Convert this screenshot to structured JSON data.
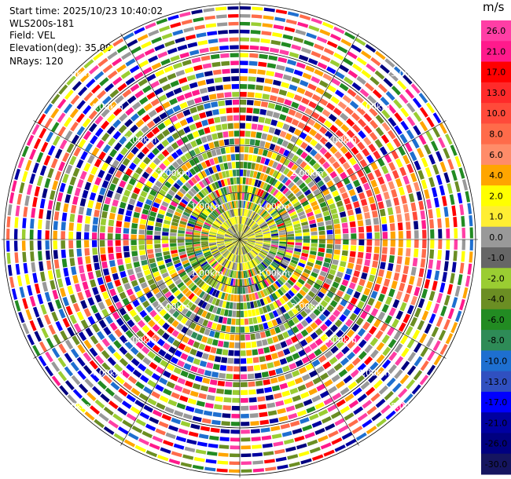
{
  "header": {
    "start_time": "Start time: 2025/10/23 10:40:02",
    "station": "WLS200s-181",
    "field": "Field: VEL",
    "elevation": "Elevation(deg): 35.00",
    "nrays": "NRays: 120"
  },
  "colorbar": {
    "units": "m/s",
    "ticks": [
      "26.0",
      "21.0",
      "17.0",
      "13.0",
      "10.0",
      "8.0",
      "6.0",
      "4.0",
      "2.0",
      "1.0",
      "0.0",
      "-1.0",
      "-2.0",
      "-4.0",
      "-6.0",
      "-8.0",
      "-10.0",
      "-13.0",
      "-17.0",
      "-21.0",
      "-26.0",
      "-30.0"
    ],
    "colors": [
      "#ff3ea5",
      "#ff1a8c",
      "#ff0000",
      "#ff2a2a",
      "#ff4a3a",
      "#ff6b4a",
      "#ff8c69",
      "#ffa500",
      "#ffff00",
      "#ffee33",
      "#999999",
      "#666666",
      "#9acd32",
      "#6b8e23",
      "#228b22",
      "#2e8b57",
      "#1e6fd0",
      "#3050c0",
      "#0000ff",
      "#0000a0",
      "#000080",
      "#151560"
    ]
  },
  "chart_data": {
    "type": "heatmap",
    "subtype": "polar PPI",
    "field": "VEL",
    "elevation_deg": 35.0,
    "nrays": 120,
    "range_rings_km": [
      1.0,
      2.0,
      3.0,
      4.0,
      5.0
    ],
    "range_labels": [
      "1.00km",
      "2.00km",
      "3.00km",
      "4.00km",
      "5.00km"
    ],
    "max_range_km": 5.0,
    "grid": true
  }
}
